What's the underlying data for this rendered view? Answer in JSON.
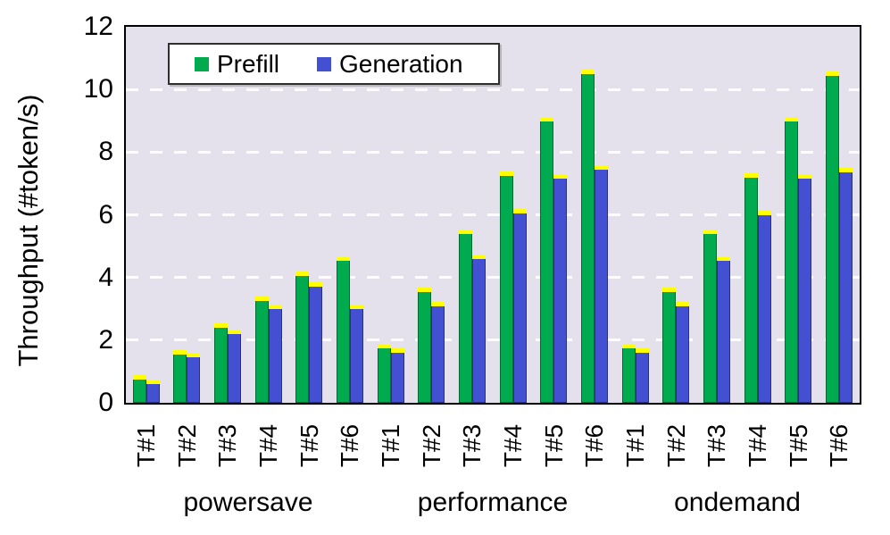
{
  "figure": {
    "background": "#ffffff",
    "plot_bg": "#e4e1ec"
  },
  "legend": {
    "items": [
      {
        "label": "Prefill",
        "color": "#00ab50"
      },
      {
        "label": "Generation",
        "color": "#4450d2"
      }
    ]
  },
  "chart_data": {
    "type": "bar",
    "title": "",
    "xlabel": "",
    "ylabel": "Throughput (#token/s)",
    "ylim": [
      0,
      12
    ],
    "yticks": [
      0,
      2,
      4,
      6,
      8,
      10,
      12
    ],
    "gridlines_at": [
      2,
      4,
      6,
      8,
      10
    ],
    "grid_style": "dashed-white-horizontal",
    "legend_position": "top-left-inside",
    "error_bar_color": "#ffff00",
    "bar_colors": {
      "Prefill": "#00ab50",
      "Generation": "#4450d2"
    },
    "categories_per_group": [
      "T#1",
      "T#2",
      "T#3",
      "T#4",
      "T#5",
      "T#6"
    ],
    "groups": [
      {
        "label": "powersave",
        "series": [
          {
            "name": "Prefill",
            "values": [
              0.8,
              1.6,
              2.45,
              3.3,
              4.1,
              4.6
            ]
          },
          {
            "name": "Generation",
            "values": [
              0.65,
              1.5,
              2.25,
              3.05,
              3.75,
              3.05
            ]
          }
        ]
      },
      {
        "label": "performance",
        "series": [
          {
            "name": "Prefill",
            "values": [
              1.8,
              3.6,
              5.45,
              7.3,
              9.05,
              10.55
            ]
          },
          {
            "name": "Generation",
            "values": [
              1.65,
              3.15,
              4.65,
              6.1,
              7.2,
              7.5
            ]
          }
        ]
      },
      {
        "label": "ondemand",
        "series": [
          {
            "name": "Prefill",
            "values": [
              1.8,
              3.6,
              5.45,
              7.25,
              9.05,
              10.5
            ]
          },
          {
            "name": "Generation",
            "values": [
              1.65,
              3.15,
              4.6,
              6.05,
              7.2,
              7.4
            ]
          }
        ]
      }
    ]
  }
}
